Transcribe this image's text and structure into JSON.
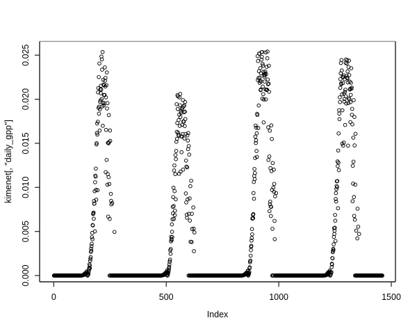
{
  "chart_data": {
    "type": "scatter",
    "title": "",
    "xlabel": "Index",
    "ylabel": "kimenet[, \"daily_gpp\"]",
    "x_ticks": {
      "values": [
        0,
        500,
        1000,
        1500
      ],
      "labels": [
        "0",
        "500",
        "1000",
        "1500"
      ]
    },
    "y_ticks": {
      "values": [
        0.0,
        0.005,
        0.01,
        0.015,
        0.02,
        0.025
      ],
      "labels": [
        "0.000",
        "0.005",
        "0.010",
        "0.015",
        "0.020",
        "0.025"
      ]
    },
    "xlim": [
      -62.7,
      1518.5
    ],
    "ylim": [
      -0.00071,
      0.02656
    ],
    "grid": false,
    "legend": null,
    "n_points": 1460,
    "marker": {
      "shape": "open-circle",
      "color": "#000000",
      "radius_px": 2.35,
      "stroke_px": 0.95
    },
    "pattern_note": "Daily GPP series: four annual growing-season peaks of open-circle scatter separated by long solid runs of exact zeros along the baseline",
    "zero_runs": [
      [
        1,
        150
      ],
      [
        255,
        505
      ],
      [
        640,
        864
      ],
      [
        1005,
        1228
      ],
      [
        1376,
        1460
      ]
    ],
    "seasons": [
      {
        "rise_start": 150,
        "peak_start": 205,
        "peak_end": 230,
        "fall_end": 292,
        "max": 0.0259
      },
      {
        "rise_start": 505,
        "peak_start": 548,
        "peak_end": 586,
        "fall_end": 652,
        "max": 0.0206
      },
      {
        "rise_start": 864,
        "peak_start": 908,
        "peak_end": 952,
        "fall_end": 1016,
        "max": 0.0257
      },
      {
        "rise_start": 1228,
        "peak_start": 1274,
        "peak_end": 1326,
        "fall_end": 1376,
        "max": 0.0246
      }
    ],
    "seed": 1337,
    "axis_color": "#1f1f1f",
    "box_top_color": "#9a9a9a",
    "background_color": "#ffffff"
  }
}
